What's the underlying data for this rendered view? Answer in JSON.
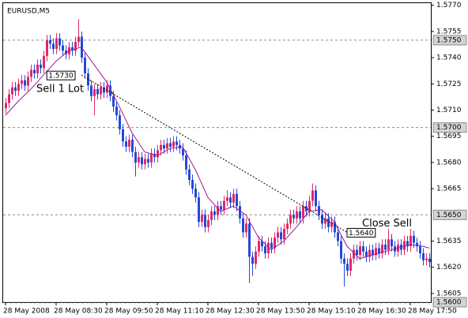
{
  "chart_data": {
    "type": "candlestick",
    "title": "EURUSD,M5",
    "categories": [
      "28 May 2008",
      null,
      null,
      null,
      null,
      null,
      null,
      null,
      null,
      null,
      null,
      null,
      null,
      null,
      null,
      null,
      "28 May 08:30",
      null,
      null,
      null,
      null,
      null,
      null,
      null,
      null,
      null,
      null,
      null,
      null,
      null,
      null,
      null,
      "28 May 09:50",
      null,
      null,
      null,
      null,
      null,
      null,
      null,
      null,
      null,
      null,
      null,
      null,
      null,
      null,
      null,
      "28 May 11:10",
      null,
      null,
      null,
      null,
      null,
      null,
      null,
      null,
      null,
      null,
      null,
      null,
      null,
      null,
      null,
      "28 May 12:30",
      null,
      null,
      null,
      null,
      null,
      null,
      null,
      null,
      null,
      null,
      null,
      null,
      null,
      null,
      null,
      "28 May 13:50",
      null,
      null,
      null,
      null,
      null,
      null,
      null,
      null,
      null,
      null,
      null,
      null,
      null,
      null,
      null,
      "28 May 15:10",
      null,
      null,
      null,
      null,
      null,
      null,
      null,
      null,
      null,
      null,
      null,
      null,
      null,
      null,
      null,
      "28 May 16:30",
      null,
      null,
      null,
      null,
      null,
      null,
      null,
      null,
      null,
      null,
      null,
      null,
      null,
      null,
      null,
      "28 May 17:50",
      null,
      null,
      null,
      null,
      null,
      null
    ],
    "open": [
      1.5711,
      1.5714,
      1.5719,
      1.5723,
      1.5721,
      1.5725,
      1.5727,
      1.5724,
      1.5729,
      1.5733,
      1.5731,
      1.5736,
      1.5734,
      1.5741,
      1.575,
      1.5748,
      1.5745,
      1.5751,
      1.5747,
      1.5744,
      1.5742,
      1.5746,
      1.5744,
      1.5749,
      1.5752,
      1.574,
      1.5731,
      1.5724,
      1.5718,
      1.5722,
      1.5719,
      1.5723,
      1.572,
      1.5724,
      1.5718,
      1.5712,
      1.5707,
      1.5699,
      1.5692,
      1.5689,
      1.5693,
      1.5686,
      1.568,
      1.5683,
      1.5679,
      1.5682,
      1.568,
      1.5685,
      1.5683,
      1.5687,
      1.569,
      1.5688,
      1.5691,
      1.5689,
      1.5692,
      1.569,
      1.5688,
      1.5684,
      1.5676,
      1.567,
      1.5665,
      1.566,
      1.5646,
      1.565,
      1.5643,
      1.5647,
      1.5652,
      1.565,
      1.5655,
      1.5653,
      1.5658,
      1.566,
      1.5657,
      1.5662,
      1.5655,
      1.5648,
      1.564,
      1.5645,
      1.5626,
      1.5622,
      1.5629,
      1.5635,
      1.5632,
      1.5628,
      1.5634,
      1.5631,
      1.5637,
      1.564,
      1.5636,
      1.5642,
      1.5645,
      1.565,
      1.5648,
      1.5652,
      1.5648,
      1.5655,
      1.5652,
      1.5658,
      1.5664,
      1.5655,
      1.565,
      1.5645,
      1.5648,
      1.5643,
      1.5646,
      1.564,
      1.5635,
      1.5625,
      1.5622,
      1.5618,
      1.5625,
      1.563,
      1.5627,
      1.5632,
      1.5629,
      1.5626,
      1.563,
      1.5627,
      1.5631,
      1.5628,
      1.5633,
      1.563,
      1.5636,
      1.5632,
      1.5629,
      1.5633,
      1.563,
      1.5635,
      1.5632,
      1.5638,
      1.5634,
      1.5632,
      1.5628,
      1.5624,
      1.5625
    ],
    "high": [
      1.5717,
      1.5722,
      1.5726,
      1.5726,
      1.5728,
      1.573,
      1.573,
      1.5732,
      1.5736,
      1.5736,
      1.5739,
      1.5739,
      1.5744,
      1.5753,
      1.5753,
      1.5751,
      1.5754,
      1.5754,
      1.575,
      1.5747,
      1.5749,
      1.5749,
      1.5752,
      1.5762,
      1.5755,
      1.5743,
      1.5734,
      1.5727,
      1.5725,
      1.5725,
      1.5726,
      1.5726,
      1.5727,
      1.5727,
      1.5721,
      1.5715,
      1.571,
      1.5702,
      1.5695,
      1.5696,
      1.5696,
      1.5689,
      1.5686,
      1.5686,
      1.5685,
      1.5685,
      1.5688,
      1.5688,
      1.569,
      1.5693,
      1.5693,
      1.5694,
      1.5694,
      1.5695,
      1.5695,
      1.5693,
      1.5691,
      1.5687,
      1.5679,
      1.5673,
      1.5668,
      1.5663,
      1.5653,
      1.5653,
      1.565,
      1.5655,
      1.5655,
      1.5658,
      1.5658,
      1.5661,
      1.5664,
      1.5663,
      1.5665,
      1.5665,
      1.5658,
      1.5651,
      1.5648,
      1.5648,
      1.5629,
      1.5632,
      1.5638,
      1.5638,
      1.5635,
      1.5637,
      1.5637,
      1.564,
      1.5643,
      1.5643,
      1.5645,
      1.5648,
      1.5653,
      1.5653,
      1.5655,
      1.5655,
      1.5658,
      1.5658,
      1.5661,
      1.5668,
      1.5667,
      1.5658,
      1.5653,
      1.5651,
      1.5651,
      1.5649,
      1.5649,
      1.5643,
      1.5638,
      1.5628,
      1.5625,
      1.5628,
      1.5633,
      1.5633,
      1.5635,
      1.5635,
      1.5632,
      1.5633,
      1.5633,
      1.5634,
      1.5634,
      1.5636,
      1.5636,
      1.5642,
      1.5639,
      1.5635,
      1.5636,
      1.5636,
      1.5638,
      1.5638,
      1.5642,
      1.5641,
      1.5637,
      1.5635,
      1.5631,
      1.5628,
      1.5628
    ],
    "low": [
      1.5708,
      1.5711,
      1.5716,
      1.5718,
      1.5718,
      1.5722,
      1.5721,
      1.5721,
      1.5726,
      1.5728,
      1.5728,
      1.5731,
      1.5731,
      1.5738,
      1.5745,
      1.5742,
      1.5742,
      1.5744,
      1.5741,
      1.5739,
      1.5739,
      1.5741,
      1.5741,
      1.5746,
      1.5737,
      1.5728,
      1.5721,
      1.5715,
      1.5707,
      1.5716,
      1.5716,
      1.5717,
      1.5717,
      1.5715,
      1.5709,
      1.5704,
      1.5696,
      1.5689,
      1.5686,
      1.5686,
      1.5683,
      1.5672,
      1.5677,
      1.5676,
      1.5676,
      1.5677,
      1.5677,
      1.568,
      1.568,
      1.5684,
      1.5685,
      1.5685,
      1.5686,
      1.5686,
      1.5687,
      1.5685,
      1.5681,
      1.5673,
      1.5667,
      1.5662,
      1.5657,
      1.5643,
      1.5643,
      1.564,
      1.564,
      1.5644,
      1.5647,
      1.5647,
      1.565,
      1.565,
      1.5655,
      1.5654,
      1.5654,
      1.5652,
      1.5645,
      1.5637,
      1.5637,
      1.5611,
      1.5615,
      1.5619,
      1.5626,
      1.5629,
      1.5625,
      1.5625,
      1.5628,
      1.5628,
      1.5634,
      1.5633,
      1.5633,
      1.5639,
      1.5642,
      1.5645,
      1.5645,
      1.5645,
      1.5645,
      1.5649,
      1.5649,
      1.5655,
      1.5652,
      1.5647,
      1.5642,
      1.5642,
      1.564,
      1.564,
      1.5637,
      1.5632,
      1.5622,
      1.5609,
      1.5615,
      1.5615,
      1.5622,
      1.5624,
      1.5624,
      1.5626,
      1.5623,
      1.5623,
      1.5624,
      1.5624,
      1.5625,
      1.5625,
      1.5627,
      1.5627,
      1.5629,
      1.5626,
      1.5626,
      1.5627,
      1.5627,
      1.5629,
      1.5629,
      1.5631,
      1.5629,
      1.5625,
      1.5621,
      1.5621,
      1.562
    ],
    "close": [
      1.5714,
      1.5719,
      1.5723,
      1.5721,
      1.5725,
      1.5727,
      1.5724,
      1.5729,
      1.5733,
      1.5731,
      1.5736,
      1.5734,
      1.5741,
      1.575,
      1.5748,
      1.5745,
      1.5751,
      1.5747,
      1.5744,
      1.5742,
      1.5746,
      1.5744,
      1.5749,
      1.5752,
      1.574,
      1.5731,
      1.5724,
      1.5718,
      1.5722,
      1.5719,
      1.5723,
      1.572,
      1.5724,
      1.5718,
      1.5712,
      1.5707,
      1.5699,
      1.5692,
      1.5689,
      1.5693,
      1.5686,
      1.568,
      1.5683,
      1.5679,
      1.5682,
      1.568,
      1.5685,
      1.5683,
      1.5687,
      1.569,
      1.5688,
      1.5691,
      1.5689,
      1.5692,
      1.569,
      1.5688,
      1.5684,
      1.5676,
      1.567,
      1.5665,
      1.566,
      1.5646,
      1.565,
      1.5643,
      1.5647,
      1.5652,
      1.565,
      1.5655,
      1.5653,
      1.5658,
      1.566,
      1.5657,
      1.5662,
      1.5655,
      1.5648,
      1.564,
      1.5645,
      1.5626,
      1.5622,
      1.5629,
      1.5635,
      1.5632,
      1.5628,
      1.5634,
      1.5631,
      1.5637,
      1.564,
      1.5636,
      1.5642,
      1.5645,
      1.565,
      1.5648,
      1.5652,
      1.5648,
      1.5655,
      1.5652,
      1.5658,
      1.5664,
      1.5655,
      1.565,
      1.5645,
      1.5648,
      1.5643,
      1.5646,
      1.564,
      1.5635,
      1.5625,
      1.5622,
      1.5618,
      1.5625,
      1.563,
      1.5627,
      1.5632,
      1.5629,
      1.5626,
      1.563,
      1.5627,
      1.5631,
      1.5628,
      1.5633,
      1.563,
      1.5636,
      1.5632,
      1.5629,
      1.5633,
      1.563,
      1.5635,
      1.5632,
      1.5638,
      1.5634,
      1.5632,
      1.5628,
      1.5624,
      1.5625,
      1.5623
    ],
    "up_color": "#e0286a",
    "down_color": "#2548d8",
    "ylim": [
      1.56,
      1.5773
    ],
    "yticks": [
      1.5605,
      {
        "value": 1.562,
        "label": "1.5620"
      },
      1.5635,
      1.5665,
      {
        "value": 1.568,
        "label": "1.5680"
      },
      1.5695,
      {
        "value": 1.571,
        "label": "1.5710"
      },
      1.5725,
      {
        "value": 1.574,
        "label": "1.5740"
      },
      1.5755,
      {
        "value": 1.577,
        "label": "1.5770"
      }
    ],
    "levels": [
      {
        "value": 1.575,
        "label": "1.5750"
      },
      {
        "value": 1.57,
        "label": "1.5700"
      },
      {
        "value": 1.565,
        "label": "1.5650"
      },
      {
        "value": 1.56,
        "label": "1.5600"
      }
    ],
    "level_color": "#8c8c8c",
    "ma": {
      "color": "#a0189c",
      "x": [
        0,
        4,
        8,
        12,
        16,
        20,
        24,
        28,
        32,
        36,
        40,
        44,
        48,
        52,
        56,
        60,
        64,
        68,
        72,
        76,
        80,
        84,
        88,
        92,
        96,
        100,
        104,
        108,
        112,
        116,
        120,
        124,
        128,
        132,
        134
      ],
      "values": [
        1.5707,
        1.5715,
        1.5722,
        1.573,
        1.5738,
        1.5744,
        1.5746,
        1.5736,
        1.5726,
        1.5712,
        1.5697,
        1.5686,
        1.5684,
        1.5688,
        1.5689,
        1.5676,
        1.566,
        1.5652,
        1.5655,
        1.565,
        1.5637,
        1.563,
        1.5635,
        1.5643,
        1.5652,
        1.5653,
        1.5646,
        1.5632,
        1.5625,
        1.5627,
        1.5629,
        1.5631,
        1.5633,
        1.5632,
        1.5631
      ]
    },
    "trades": [
      {
        "label": "Sell 1 Lot",
        "price_label": "1.5730",
        "price": 1.573,
        "x": 24
      },
      {
        "label": "Close Sell",
        "price_label": "1.5640",
        "price": 1.564,
        "x": 108
      }
    ]
  }
}
